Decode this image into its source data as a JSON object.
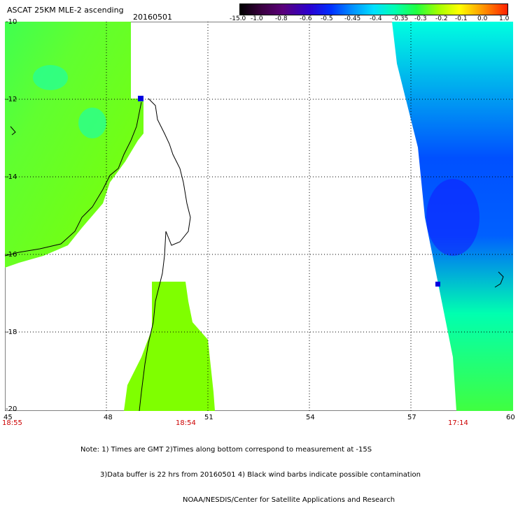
{
  "header": {
    "title": "ASCAT 25KM MLE-2 ascending",
    "date": "20160501"
  },
  "colorbar": {
    "labels": [
      "-15.0",
      "-1.0",
      "-0.8",
      "-0.6",
      "-0.5",
      "-0.45",
      "-0.4",
      "-0.35",
      "-0.3",
      "-0.2",
      "-0.1",
      "0.0",
      "1.0"
    ]
  },
  "axes": {
    "lat_labels": [
      "-10",
      "-12",
      "-14",
      "-16",
      "-18",
      "-20"
    ],
    "lon_labels": [
      "45",
      "48",
      "51",
      "54",
      "57",
      "60"
    ]
  },
  "pass_times": [
    "18:55",
    "18:54",
    "17:14"
  ],
  "colors": {
    "swath_green": "#7fff00",
    "swath_cyan": "#00ffe0",
    "swath_blue": "#0040ff",
    "time_red": "#cc0000"
  },
  "footer": {
    "line1": "Note: 1) Times are GMT 2)Times along bottom correspond to measurement at -15S",
    "line2": "3)Data buffer is 22 hrs from 20160501 4) Black wind barbs indicate possible contamination",
    "line3": "NOAA/NESDIS/Center for Satellite Applications and Research"
  }
}
